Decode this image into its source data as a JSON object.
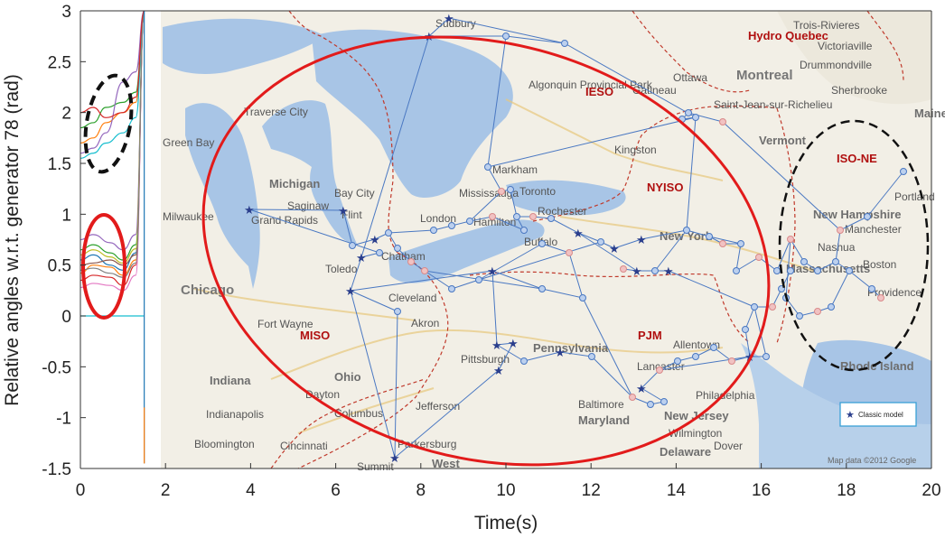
{
  "chart_data": {
    "type": "line",
    "title": "",
    "xlabel": "Time(s)",
    "ylabel": "Relative angles w.r.t. generator 78 (rad)",
    "xlim": [
      0,
      20
    ],
    "ylim": [
      -1.5,
      3
    ],
    "xticks": [
      0,
      2,
      4,
      6,
      8,
      10,
      12,
      14,
      16,
      18,
      20
    ],
    "yticks": [
      -1.5,
      -1,
      -0.5,
      0,
      0.5,
      1,
      1.5,
      2,
      2.5,
      3
    ],
    "grid": false,
    "series_note": "",
    "series": [
      {
        "color": "#1f77b4",
        "x": [
          0,
          0.3,
          0.7,
          1.0,
          1.3,
          1.5
        ],
        "y": [
          0.55,
          0.6,
          0.5,
          0.45,
          0.62,
          3
        ]
      },
      {
        "color": "#ff7f0e",
        "x": [
          0,
          0.3,
          0.7,
          1.0,
          1.3,
          1.5
        ],
        "y": [
          0.42,
          0.5,
          0.48,
          0.4,
          0.55,
          3
        ]
      },
      {
        "color": "#2ca02c",
        "x": [
          0,
          0.3,
          0.7,
          1.0,
          1.3,
          1.5
        ],
        "y": [
          0.65,
          0.7,
          0.62,
          0.55,
          0.7,
          3
        ]
      },
      {
        "color": "#d62728",
        "x": [
          0,
          0.3,
          0.7,
          1.0,
          1.3,
          1.5
        ],
        "y": [
          0.35,
          0.4,
          0.38,
          0.3,
          0.5,
          3
        ]
      },
      {
        "color": "#9467bd",
        "x": [
          0,
          0.3,
          0.7,
          1.0,
          1.3,
          1.5
        ],
        "y": [
          0.75,
          0.8,
          0.72,
          0.65,
          0.8,
          3
        ]
      },
      {
        "color": "#8c564b",
        "x": [
          0,
          0.3,
          0.7,
          1.0,
          1.3,
          1.5
        ],
        "y": [
          0.5,
          0.52,
          0.55,
          0.5,
          0.6,
          3
        ]
      },
      {
        "color": "#e377c2",
        "x": [
          0,
          0.3,
          0.7,
          1.0,
          1.3,
          1.5
        ],
        "y": [
          0.28,
          0.32,
          0.3,
          0.25,
          0.4,
          3
        ]
      },
      {
        "color": "#17becf",
        "x": [
          0,
          0.3,
          0.7,
          1.0,
          1.3,
          1.5
        ],
        "y": [
          0.0,
          0.0,
          0.0,
          0.0,
          0.0,
          0.0
        ]
      },
      {
        "color": "#bcbd22",
        "x": [
          0,
          0.3,
          0.7,
          1.0,
          1.3,
          1.5
        ],
        "y": [
          0.6,
          0.65,
          0.58,
          0.52,
          0.66,
          3
        ]
      },
      {
        "color": "#7f7f7f",
        "x": [
          0,
          0.3,
          0.7,
          1.0,
          1.3,
          1.5
        ],
        "y": [
          0.45,
          0.47,
          0.42,
          0.38,
          0.52,
          3
        ]
      },
      {
        "color": "#ff7f0e",
        "x": [
          0,
          0.3,
          0.6,
          1.0,
          1.3,
          1.5
        ],
        "y": [
          1.7,
          1.75,
          1.9,
          2.0,
          2.1,
          3
        ]
      },
      {
        "color": "#2ca02c",
        "x": [
          0,
          0.3,
          0.6,
          1.0,
          1.3,
          1.5
        ],
        "y": [
          1.85,
          1.9,
          2.05,
          2.1,
          2.2,
          3
        ]
      },
      {
        "color": "#9467bd",
        "x": [
          0,
          0.3,
          0.6,
          1.0,
          1.3,
          1.5
        ],
        "y": [
          1.6,
          1.65,
          1.8,
          2.3,
          2.4,
          3
        ]
      },
      {
        "color": "#17becf",
        "x": [
          0,
          0.3,
          0.6,
          1.0,
          1.3,
          1.5
        ],
        "y": [
          1.55,
          1.6,
          1.7,
          1.8,
          1.95,
          3
        ]
      },
      {
        "color": "#d62728",
        "x": [
          0,
          0.3,
          0.6,
          1.0,
          1.3,
          1.5
        ],
        "y": [
          2.0,
          2.05,
          1.95,
          2.0,
          2.15,
          3
        ]
      },
      {
        "color": "#1f77b4",
        "x": [
          1.5,
          1.5
        ],
        "y": [
          -1.45,
          3
        ]
      },
      {
        "color": "#ff7f0e",
        "x": [
          1.5,
          1.5
        ],
        "y": [
          -1.45,
          -0.9
        ]
      }
    ],
    "annotations": {
      "map": {
        "regions": [
          "MISO",
          "IESO",
          "NYISO",
          "PJM",
          "ISO-NE",
          "Hydro Quebec"
        ],
        "map_labels": {
          "states": [
            "Michigan",
            "Ohio",
            "Indiana",
            "Pennsylvania",
            "New York",
            "New Hampshire",
            "Massachusetts",
            "Rhode Island",
            "Maryland",
            "New Jersey",
            "Delaware",
            "West",
            "Vermont",
            "Maine"
          ],
          "cities": [
            "Chicago",
            "Milwaukee",
            "Fort Wayne",
            "Toledo",
            "Cleveland",
            "Akron",
            "Pittsburgh",
            "Philadelphia",
            "Indianapolis",
            "Columbus",
            "Cincinnati",
            "Dayton",
            "Toronto",
            "Ottawa",
            "Montreal",
            "Rochester",
            "Boston",
            "Providence",
            "Portland",
            "Manchester",
            "Kingston",
            "Saginaw",
            "Bay City",
            "Flint",
            "Traverse City",
            "London",
            "Hamilton",
            "Buffalo",
            "Markham",
            "Mississauga",
            "Sudbury",
            "Green Bay",
            "Grand Rapids",
            "Bloomington",
            "Summit",
            "Trois-Rivieres",
            "Victoriaville",
            "Drummondville",
            "Sherbrooke",
            "Saint-Jean-sur-Richelieu",
            "Algonquin Provincial Park",
            "Chatham",
            "Parkersburg",
            "Lancaster",
            "Nashua",
            "Gatineau",
            "Jefferson",
            "Allentown",
            "Baltimore",
            "Wilmington",
            "Dover"
          ]
        },
        "credit": "Map data ©2012 Google",
        "legend": "Classic model"
      }
    }
  }
}
